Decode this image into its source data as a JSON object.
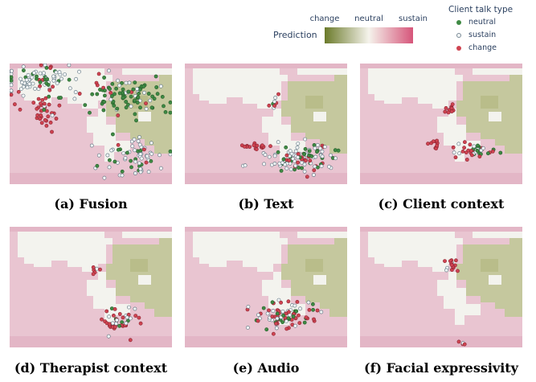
{
  "chart_data": {
    "type": "scatter",
    "colorbar": {
      "title": "Prediction",
      "tick_labels": [
        "change",
        "neutral",
        "sustain"
      ],
      "colors": [
        "#6b7a2a",
        "#f5f3ec",
        "#d6557a"
      ]
    },
    "legend": {
      "title": "Client talk type",
      "placement": "top-right",
      "entries": [
        {
          "label": "neutral",
          "color": "#3f8a44",
          "marker": "filled-circle"
        },
        {
          "label": "sustain",
          "color": "#f2f6f6",
          "marker": "hollow-circle"
        },
        {
          "label": "change",
          "color": "#cf4451",
          "marker": "filled-circle"
        }
      ]
    },
    "panels": [
      {
        "caption": "(a) Fusion"
      },
      {
        "caption": "(b) Text"
      },
      {
        "caption": "(c) Client context"
      },
      {
        "caption": "(d) Therapist context"
      },
      {
        "caption": "(e) Audio"
      },
      {
        "caption": "(f) Facial expressivity"
      }
    ],
    "axes_visible": false,
    "grid": false
  }
}
